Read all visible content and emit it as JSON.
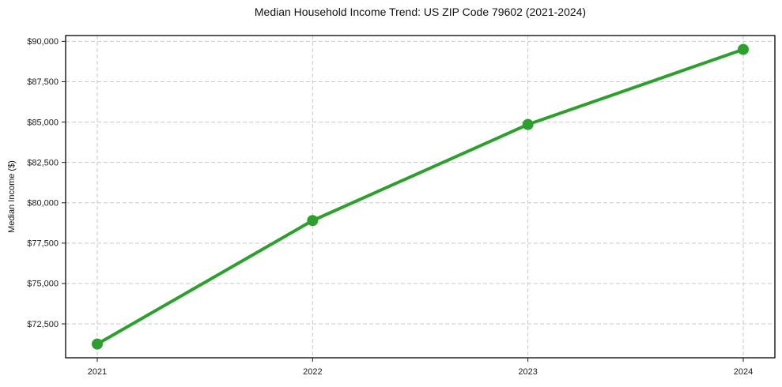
{
  "chart_data": {
    "type": "line",
    "title": "Median Household Income Trend: US ZIP Code 79602 (2021-2024)",
    "xlabel": "",
    "ylabel": "Median Income ($)",
    "x": [
      2021,
      2022,
      2023,
      2024
    ],
    "series": [
      {
        "name": "Median Household Income",
        "values": [
          71250,
          78900,
          84850,
          89500
        ]
      }
    ],
    "xticks": [
      2021,
      2022,
      2023,
      2024
    ],
    "xtick_labels": [
      "2021",
      "2022",
      "2023",
      "2024"
    ],
    "yticks": [
      72500,
      75000,
      77500,
      80000,
      82500,
      85000,
      87500,
      90000
    ],
    "ytick_labels": [
      "$72,500",
      "$75,000",
      "$77,500",
      "$80,000",
      "$82,500",
      "$85,000",
      "$87,500",
      "$90,000"
    ],
    "xlim": [
      2020.853,
      2024.147
    ],
    "ylim": [
      70400,
      90360
    ],
    "grid": true,
    "grid_style": "dashed",
    "legend": false,
    "colors": {
      "line": "#2ca02c",
      "marker": "#2ca02c",
      "grid": "#c9c9c9",
      "spine": "#000000",
      "text": "#1a1a1a",
      "background": "#ffffff"
    }
  }
}
